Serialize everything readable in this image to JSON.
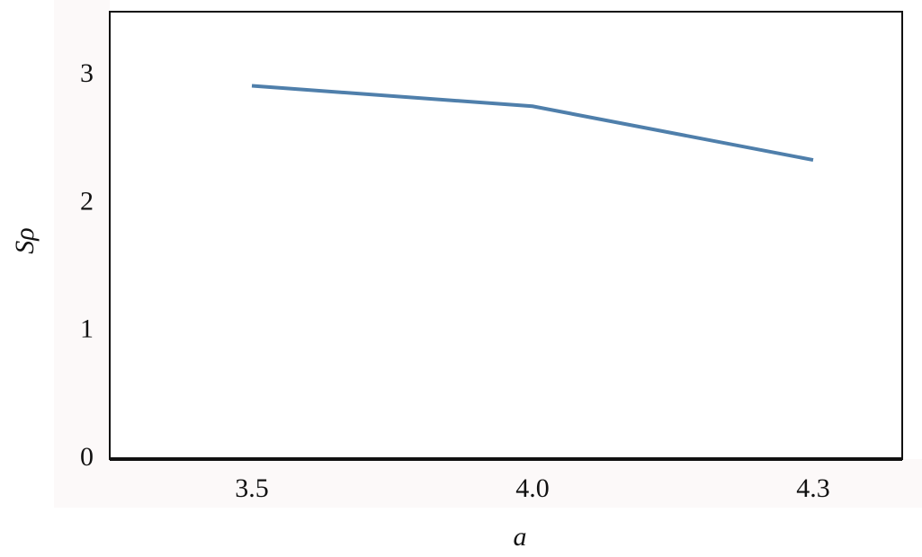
{
  "chart_data": {
    "type": "line",
    "x_label": "a",
    "y_label": "Sρ",
    "categories": [
      "3.5",
      "4.0",
      "4.3"
    ],
    "series": [
      {
        "name": "Sρ",
        "color": "#4f7fab",
        "values": [
          2.92,
          2.76,
          2.34
        ]
      }
    ],
    "ylim": [
      0,
      3.5
    ],
    "yticks": [
      0,
      1,
      2,
      3
    ]
  }
}
